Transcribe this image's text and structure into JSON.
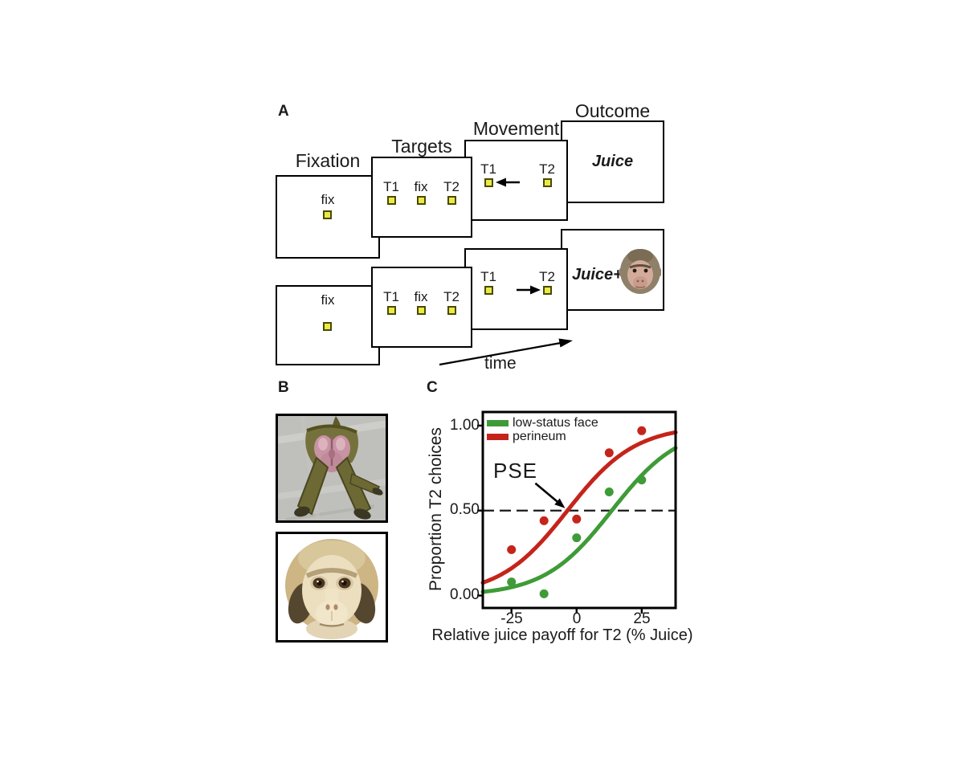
{
  "panels": {
    "a": "A",
    "b": "B",
    "c": "C"
  },
  "panelA": {
    "stage_labels": [
      "Fixation",
      "Targets",
      "Movement",
      "Outcome"
    ],
    "fix_label": "fix",
    "t1_label": "T1",
    "t2_label": "T2",
    "outcome_row1": "Juice",
    "outcome_row2": "Juice+",
    "time_label": "time",
    "target_square_color": "#eaea45",
    "target_square_border": "#494907",
    "row1_movement_arrow": "left",
    "row2_movement_arrow": "right"
  },
  "panelB": {
    "images": [
      {
        "name": "perineum-photo"
      },
      {
        "name": "low-status-face-photo"
      }
    ]
  },
  "chart_data": {
    "type": "scatter",
    "title": "",
    "xlabel": "Relative juice payoff for T2 (% Juice)",
    "ylabel": "Proportion T2 choices",
    "xlim": [
      -36,
      38
    ],
    "ylim": [
      -0.073,
      1.08
    ],
    "xticks": [
      -25,
      0,
      25
    ],
    "xtick_labels": [
      "-25",
      "0",
      "25"
    ],
    "yticks": [
      0,
      0.5,
      1
    ],
    "ytick_labels": [
      "0.00",
      "0.50",
      "1.00"
    ],
    "grid": false,
    "legend_position": "top-left",
    "reference_line_y": 0.5,
    "annotation": {
      "label": "PSE",
      "arrow_to_x": -3.5,
      "arrow_to_y": 0.5
    },
    "series": [
      {
        "name": "low-status face",
        "color": "#3f9b38",
        "points": [
          [
            -25,
            0.08
          ],
          [
            -12.5,
            0.01
          ],
          [
            0,
            0.34
          ],
          [
            12.5,
            0.61
          ],
          [
            25,
            0.68
          ]
        ],
        "fit_sigmoid": {
          "pse": 13.5,
          "slope": 13
        }
      },
      {
        "name": "perineum",
        "color": "#c5241b",
        "points": [
          [
            -25,
            0.27
          ],
          [
            -12.5,
            0.44
          ],
          [
            0,
            0.45
          ],
          [
            12.5,
            0.84
          ],
          [
            25,
            0.97
          ]
        ],
        "fit_sigmoid": {
          "pse": -3.5,
          "slope": 13
        }
      }
    ]
  }
}
